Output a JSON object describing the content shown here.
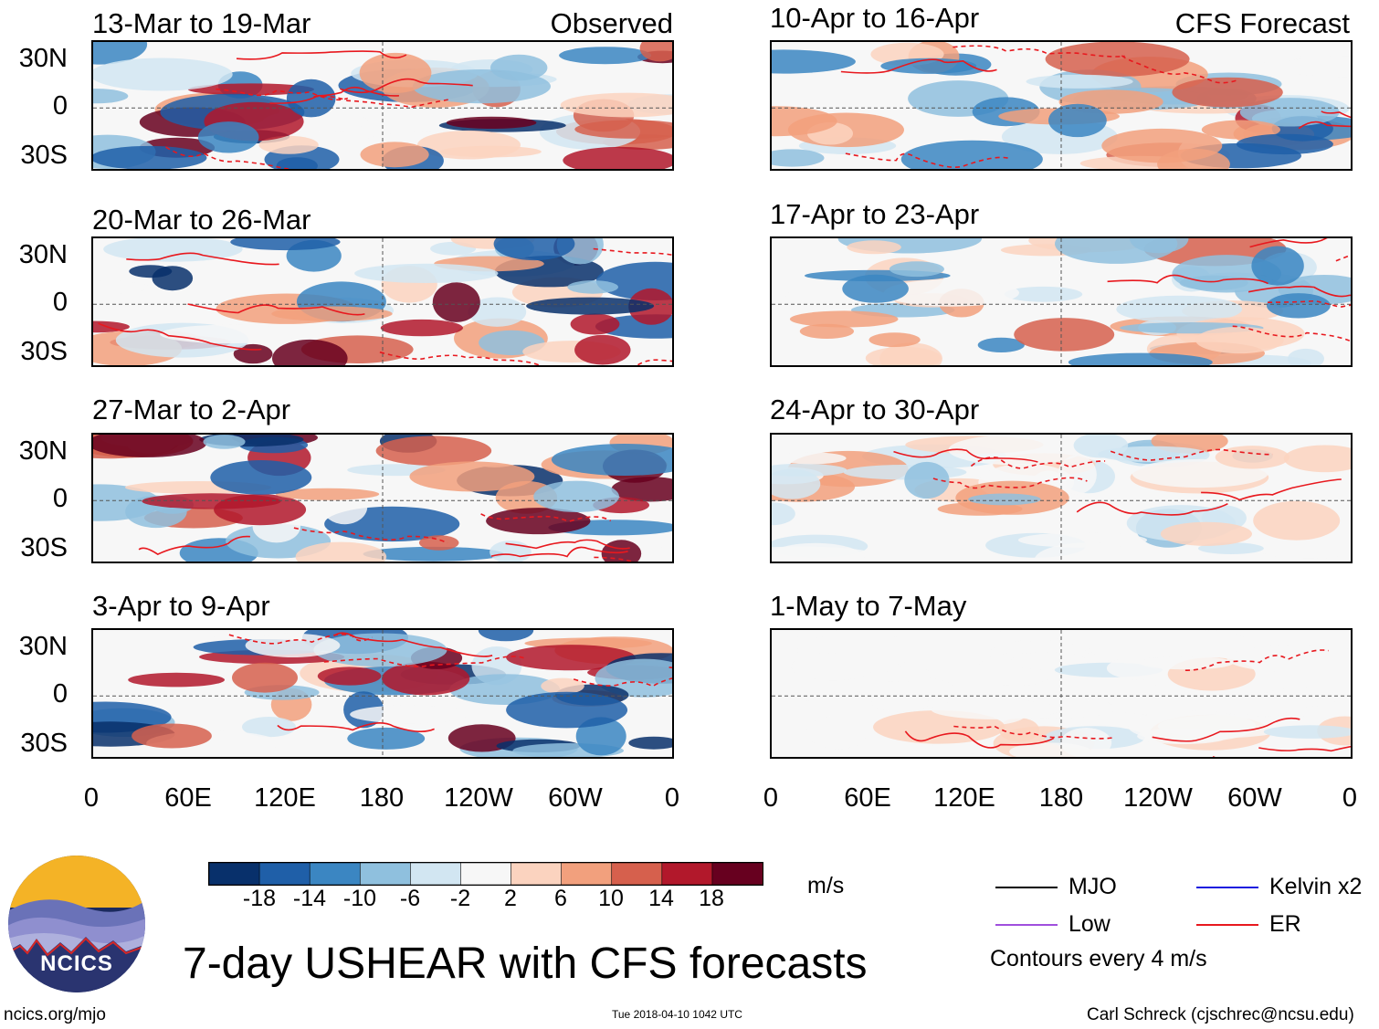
{
  "chart_data": {
    "type": "heatmap",
    "title": "7-day USHEAR with CFS forecasts",
    "variable": "USHEAR",
    "units": "m/s",
    "lat_ticks": [
      "30N",
      "0",
      "30S"
    ],
    "lon_ticks": [
      "0",
      "60E",
      "120E",
      "180",
      "120W",
      "60W",
      "0"
    ],
    "colorbar": {
      "ticks": [
        "-18",
        "-14",
        "-10",
        "-6",
        "-2",
        "2",
        "6",
        "10",
        "14",
        "18"
      ],
      "colors": [
        "#08306b",
        "#1f5fa8",
        "#3b86c2",
        "#8fc0de",
        "#d2e6f2",
        "#f7f7f7",
        "#fbd3bf",
        "#f2a07d",
        "#d6604d",
        "#b2182b",
        "#67001f"
      ]
    },
    "observed_label": "Observed",
    "forecast_label": "CFS Forecast",
    "observed_panels": [
      {
        "title": "13-Mar to 19-Mar"
      },
      {
        "title": "20-Mar to 26-Mar"
      },
      {
        "title": "27-Mar to 2-Apr"
      },
      {
        "title": "3-Apr to 9-Apr"
      }
    ],
    "forecast_panels": [
      {
        "title": "10-Apr to 16-Apr"
      },
      {
        "title": "17-Apr to 23-Apr"
      },
      {
        "title": "24-Apr to 30-Apr"
      },
      {
        "title": "1-May to 7-May"
      }
    ],
    "legend": [
      {
        "name": "MJO",
        "color": "#000000"
      },
      {
        "name": "Kelvin x2",
        "color": "#1a1adf"
      },
      {
        "name": "Low",
        "color": "#a04fdd"
      },
      {
        "name": "ER",
        "color": "#e8181e"
      }
    ],
    "contour_note": "Contours every 4 m/s"
  },
  "logo": {
    "text": "NCICS"
  },
  "footer": {
    "website": "ncics.org/mjo",
    "timestamp": "Tue 2018-04-10 1042 UTC",
    "author": "Carl Schreck (cjschrec@ncsu.edu)"
  }
}
